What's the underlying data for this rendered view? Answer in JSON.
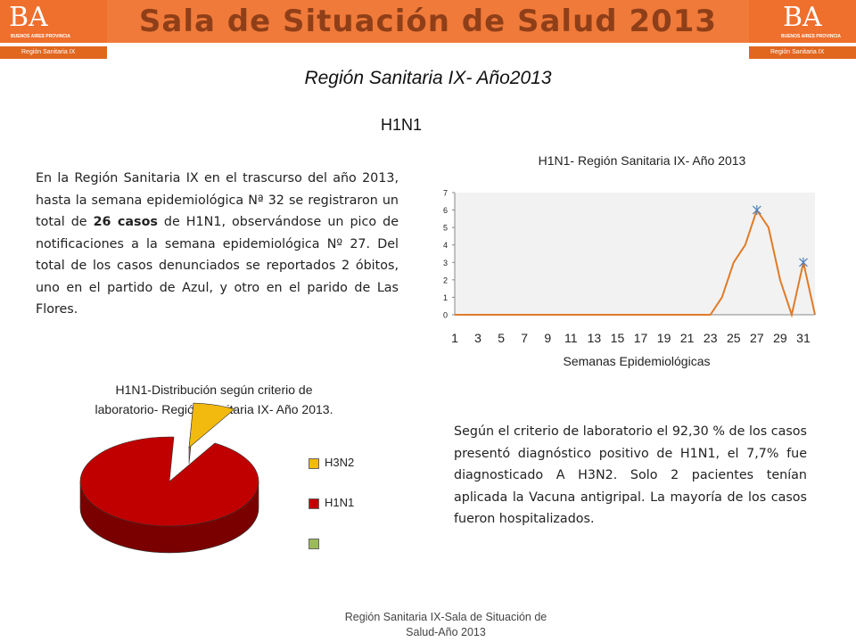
{
  "header": {
    "banner_title": "Sala de Situación de Salud 2013",
    "logo_text": "BA",
    "logo_province": "BUENOS AIRES PROVINCIA",
    "logo_region": "Región Sanitaria IX",
    "banner_color": "#f07a3a"
  },
  "subtitle": "Región Sanitaria IX- Año2013",
  "section_title": "H1N1",
  "paragraph1": {
    "part1": "En la Región Sanitaria IX en el trascurso del año 2013, hasta la semana epidemiológica Nª 32 se registraron un total de ",
    "bold": "26 casos",
    "part2": " de H1N1, observándose un pico de notificaciones a la semana epidemiológica Nº 27. Del total de los casos denunciados se reportados 2 óbitos, uno en el partido de Azul, y otro en el parido de Las Flores."
  },
  "paragraph2": "Según el criterio de laboratorio el 92,30 % de los casos presentó diagnóstico positivo de H1N1, el 7,7% fue diagnosticado A H3N2. Solo 2 pacientes tenían aplicada la Vacuna antigripal. La mayoría de los casos fueron hospitalizados.",
  "footer": {
    "line1": "Región Sanitaria IX-Sala de Situación de",
    "line2": "Salud-Año 2013"
  },
  "chart_data": [
    {
      "type": "line",
      "title": "H1N1- Región Sanitaria IX- Año 2013",
      "xlabel": "Semanas Epidemiológicas",
      "ylabel": "",
      "x": [
        1,
        2,
        3,
        4,
        5,
        6,
        7,
        8,
        9,
        10,
        11,
        12,
        13,
        14,
        15,
        16,
        17,
        18,
        19,
        20,
        21,
        22,
        23,
        24,
        25,
        26,
        27,
        28,
        29,
        30,
        31,
        32
      ],
      "x_tick_labels": [
        "1",
        "3",
        "5",
        "7",
        "9",
        "11",
        "13",
        "15",
        "17",
        "19",
        "21",
        "23",
        "25",
        "27",
        "29",
        "31"
      ],
      "values": [
        0,
        0,
        0,
        0,
        0,
        0,
        0,
        0,
        0,
        0,
        0,
        0,
        0,
        0,
        0,
        0,
        0,
        0,
        0,
        0,
        0,
        0,
        0,
        1,
        3,
        4,
        6,
        5,
        2,
        0,
        3,
        0
      ],
      "markers": [
        {
          "x": 27,
          "y": 6
        },
        {
          "x": 31,
          "y": 3
        }
      ],
      "ylim": [
        0,
        7
      ],
      "y_ticks": [
        0,
        1,
        2,
        3,
        4,
        5,
        6,
        7
      ],
      "grid": false,
      "line_color": "#e07b27",
      "marker_color": "#4f81bd",
      "plot_background": "#f2f2f2"
    },
    {
      "type": "pie",
      "title_line1": "H1N1-Distribución según criterio de",
      "title_line2": "laboratorio- Región Sanitaria IX- Año 2013.",
      "slices": [
        {
          "label": "H3N2",
          "percent": 7.7,
          "color": "#f2b90f"
        },
        {
          "label": "H1N1",
          "percent": 92.3,
          "color": "#c00000"
        },
        {
          "label": "",
          "percent": 0,
          "color": "#9bbb59"
        }
      ],
      "legend_position": "right"
    }
  ]
}
